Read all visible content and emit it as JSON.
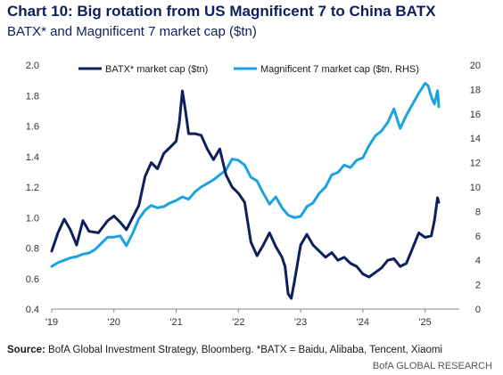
{
  "header": {
    "title": "Chart 10: Big rotation from US Magnificent 7 to China BATX",
    "subtitle": "BATX* and Magnificent 7 market cap ($tn)"
  },
  "footer": {
    "source_label": "Source:",
    "source_text": " BofA Global Investment Strategy, Bloomberg. *BATX = Baidu, Alibaba, Tencent, Xiaomi",
    "brand": "BofA GLOBAL RESEARCH"
  },
  "chart_data": {
    "type": "line",
    "x_axis": {
      "ticks": [
        "'19",
        "'20",
        "'21",
        "'22",
        "'23",
        "'24",
        "'25"
      ],
      "range": [
        2019.0,
        2025.55
      ]
    },
    "y_left": {
      "ticks": [
        "0.4",
        "0.6",
        "0.8",
        "1.0",
        "1.2",
        "1.4",
        "1.6",
        "1.8",
        "2.0"
      ],
      "range": [
        0.4,
        2.0
      ]
    },
    "y_right": {
      "ticks": [
        "0",
        "2",
        "4",
        "6",
        "8",
        "10",
        "12",
        "14",
        "16",
        "18",
        "20"
      ],
      "range": [
        0,
        20
      ]
    },
    "grid": false,
    "legend_position": "top",
    "series": [
      {
        "name": "BATX* market cap ($tn)",
        "axis": "left",
        "color": "#0d1f5c",
        "points": [
          [
            2019.0,
            0.78
          ],
          [
            2019.1,
            0.9
          ],
          [
            2019.2,
            0.99
          ],
          [
            2019.3,
            0.92
          ],
          [
            2019.4,
            0.82
          ],
          [
            2019.5,
            0.98
          ],
          [
            2019.6,
            0.91
          ],
          [
            2019.75,
            0.9
          ],
          [
            2019.9,
            0.98
          ],
          [
            2020.0,
            1.01
          ],
          [
            2020.1,
            0.97
          ],
          [
            2020.2,
            0.92
          ],
          [
            2020.3,
            1.0
          ],
          [
            2020.4,
            1.08
          ],
          [
            2020.5,
            1.27
          ],
          [
            2020.6,
            1.36
          ],
          [
            2020.7,
            1.32
          ],
          [
            2020.8,
            1.42
          ],
          [
            2020.9,
            1.46
          ],
          [
            2021.0,
            1.5
          ],
          [
            2021.05,
            1.62
          ],
          [
            2021.1,
            1.83
          ],
          [
            2021.15,
            1.7
          ],
          [
            2021.2,
            1.55
          ],
          [
            2021.3,
            1.55
          ],
          [
            2021.4,
            1.54
          ],
          [
            2021.5,
            1.45
          ],
          [
            2021.6,
            1.38
          ],
          [
            2021.7,
            1.45
          ],
          [
            2021.8,
            1.28
          ],
          [
            2021.9,
            1.2
          ],
          [
            2022.0,
            1.16
          ],
          [
            2022.1,
            1.1
          ],
          [
            2022.2,
            0.84
          ],
          [
            2022.3,
            0.75
          ],
          [
            2022.4,
            0.82
          ],
          [
            2022.5,
            0.9
          ],
          [
            2022.6,
            0.81
          ],
          [
            2022.7,
            0.74
          ],
          [
            2022.75,
            0.68
          ],
          [
            2022.8,
            0.5
          ],
          [
            2022.85,
            0.47
          ],
          [
            2022.9,
            0.58
          ],
          [
            2023.0,
            0.82
          ],
          [
            2023.1,
            0.89
          ],
          [
            2023.2,
            0.82
          ],
          [
            2023.3,
            0.78
          ],
          [
            2023.4,
            0.74
          ],
          [
            2023.5,
            0.77
          ],
          [
            2023.6,
            0.72
          ],
          [
            2023.7,
            0.74
          ],
          [
            2023.8,
            0.7
          ],
          [
            2023.9,
            0.68
          ],
          [
            2024.0,
            0.63
          ],
          [
            2024.1,
            0.61
          ],
          [
            2024.2,
            0.64
          ],
          [
            2024.3,
            0.67
          ],
          [
            2024.4,
            0.72
          ],
          [
            2024.5,
            0.73
          ],
          [
            2024.6,
            0.68
          ],
          [
            2024.7,
            0.7
          ],
          [
            2024.8,
            0.8
          ],
          [
            2024.9,
            0.9
          ],
          [
            2025.0,
            0.87
          ],
          [
            2025.1,
            0.88
          ],
          [
            2025.15,
            0.98
          ],
          [
            2025.2,
            1.13
          ],
          [
            2025.22,
            1.1
          ]
        ]
      },
      {
        "name": "Magnificent 7 market cap ($tn, RHS)",
        "axis": "right",
        "color": "#1aa3e0",
        "points": [
          [
            2019.0,
            3.5
          ],
          [
            2019.1,
            3.8
          ],
          [
            2019.2,
            4.0
          ],
          [
            2019.3,
            4.2
          ],
          [
            2019.4,
            4.3
          ],
          [
            2019.5,
            4.5
          ],
          [
            2019.6,
            4.6
          ],
          [
            2019.7,
            4.9
          ],
          [
            2019.8,
            5.4
          ],
          [
            2019.9,
            5.9
          ],
          [
            2020.0,
            5.9
          ],
          [
            2020.1,
            6.0
          ],
          [
            2020.2,
            5.2
          ],
          [
            2020.3,
            6.2
          ],
          [
            2020.4,
            7.4
          ],
          [
            2020.5,
            8.1
          ],
          [
            2020.6,
            8.5
          ],
          [
            2020.7,
            8.3
          ],
          [
            2020.8,
            8.4
          ],
          [
            2020.9,
            8.7
          ],
          [
            2021.0,
            8.9
          ],
          [
            2021.1,
            9.2
          ],
          [
            2021.2,
            9.0
          ],
          [
            2021.3,
            9.6
          ],
          [
            2021.4,
            10.0
          ],
          [
            2021.5,
            10.3
          ],
          [
            2021.6,
            10.6
          ],
          [
            2021.7,
            11.0
          ],
          [
            2021.8,
            11.4
          ],
          [
            2021.9,
            12.3
          ],
          [
            2022.0,
            12.2
          ],
          [
            2022.1,
            11.8
          ],
          [
            2022.2,
            10.8
          ],
          [
            2022.3,
            10.5
          ],
          [
            2022.4,
            9.5
          ],
          [
            2022.5,
            8.6
          ],
          [
            2022.6,
            9.2
          ],
          [
            2022.7,
            8.3
          ],
          [
            2022.8,
            7.7
          ],
          [
            2022.9,
            7.5
          ],
          [
            2023.0,
            7.6
          ],
          [
            2023.1,
            8.4
          ],
          [
            2023.2,
            8.7
          ],
          [
            2023.3,
            9.5
          ],
          [
            2023.4,
            10.0
          ],
          [
            2023.5,
            11.0
          ],
          [
            2023.6,
            11.2
          ],
          [
            2023.7,
            11.8
          ],
          [
            2023.8,
            11.6
          ],
          [
            2023.9,
            12.2
          ],
          [
            2024.0,
            12.4
          ],
          [
            2024.1,
            13.4
          ],
          [
            2024.2,
            14.2
          ],
          [
            2024.3,
            14.6
          ],
          [
            2024.4,
            15.3
          ],
          [
            2024.5,
            16.4
          ],
          [
            2024.6,
            14.8
          ],
          [
            2024.7,
            15.9
          ],
          [
            2024.8,
            16.8
          ],
          [
            2024.9,
            17.7
          ],
          [
            2025.0,
            18.5
          ],
          [
            2025.05,
            18.3
          ],
          [
            2025.1,
            17.4
          ],
          [
            2025.15,
            16.8
          ],
          [
            2025.2,
            17.9
          ],
          [
            2025.22,
            16.6
          ]
        ]
      }
    ]
  }
}
